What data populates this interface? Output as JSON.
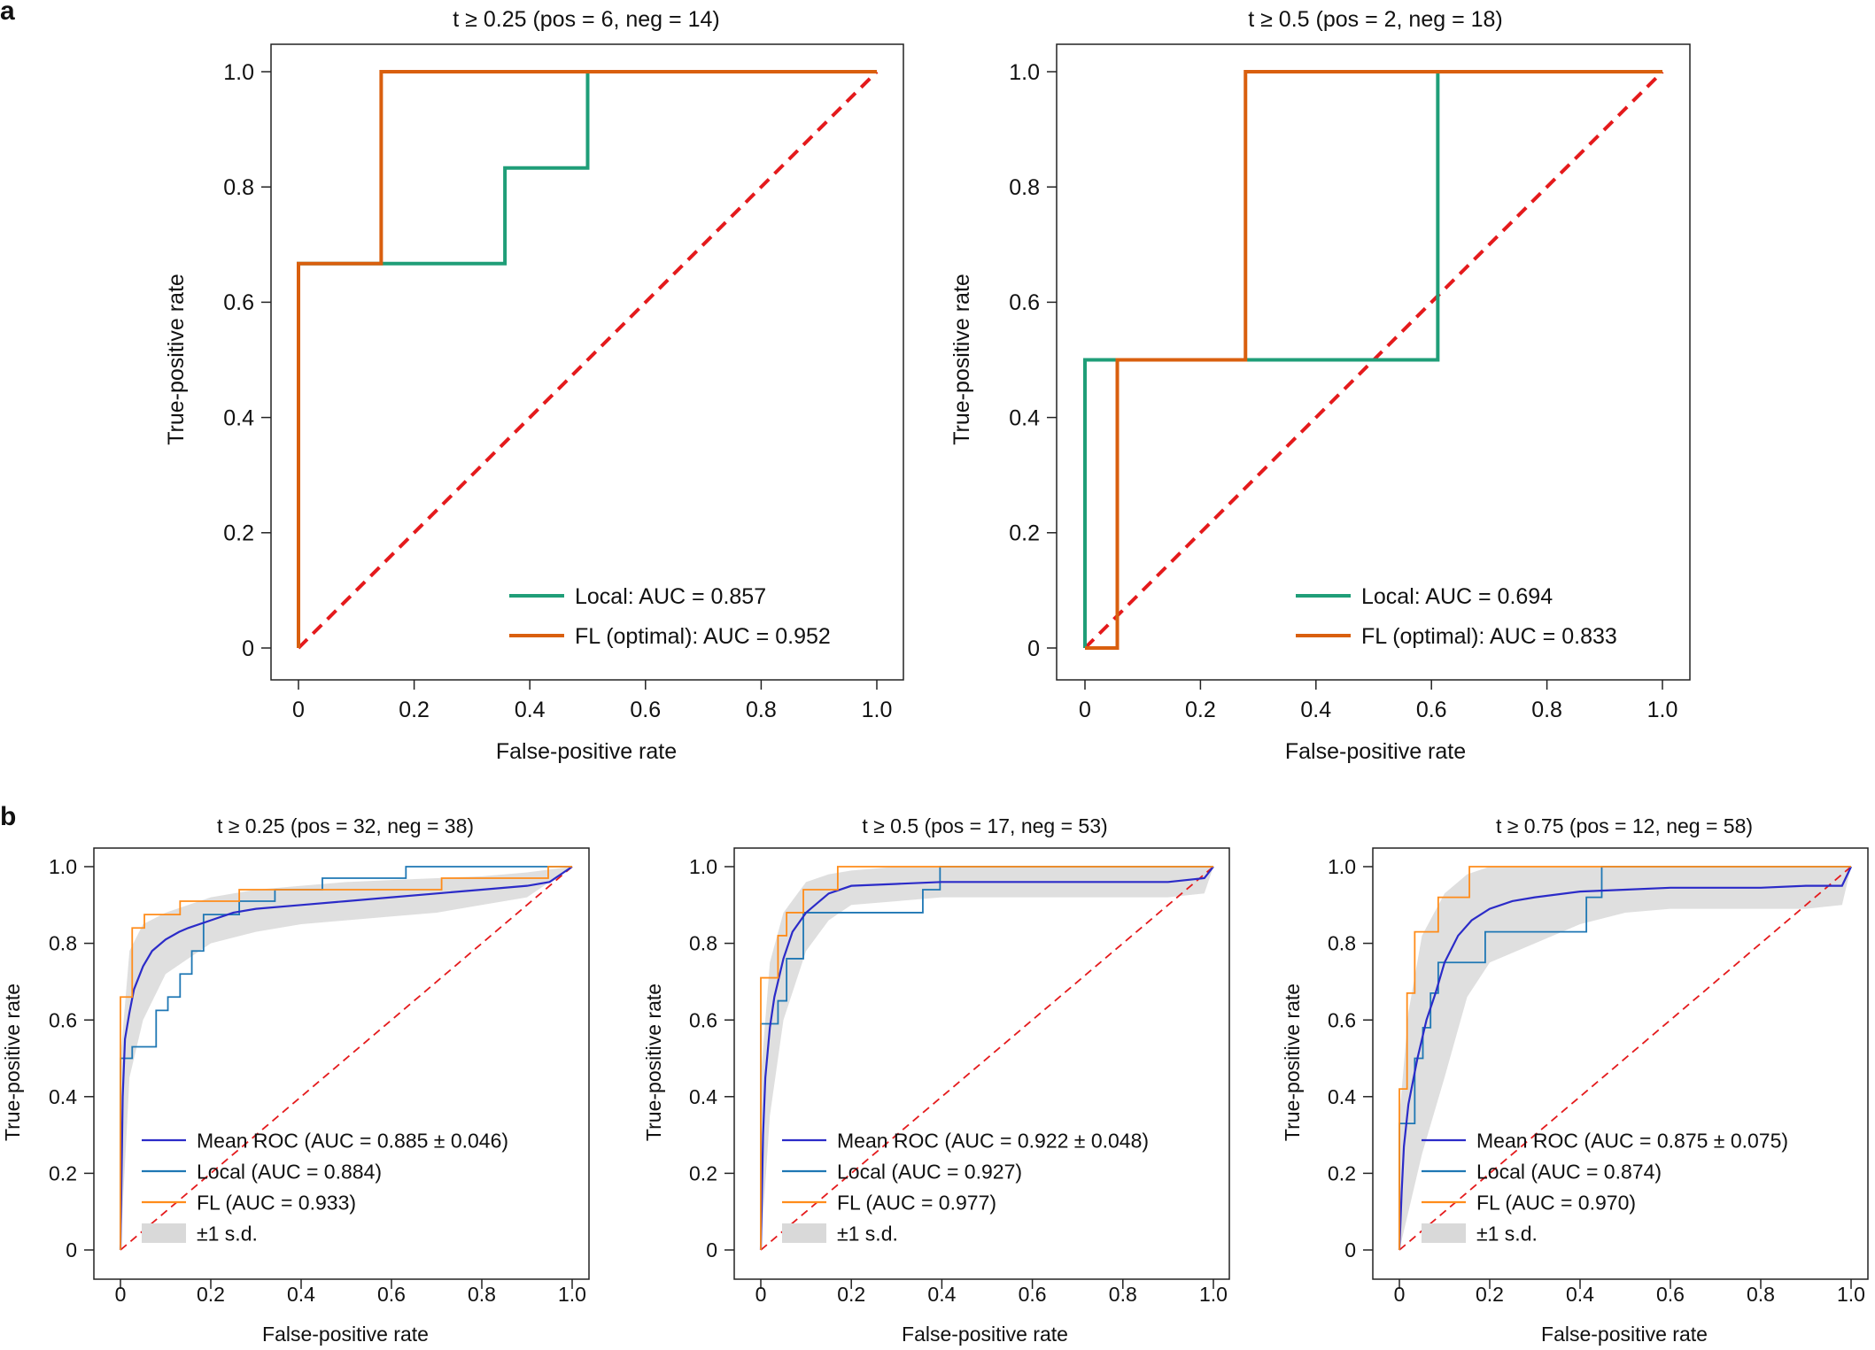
{
  "panel_labels": [
    "a",
    "b"
  ],
  "chart_data": [
    {
      "type": "line",
      "panel": "a",
      "title": "t ≥ 0.25 (pos = 6, neg = 14)",
      "xlabel": "False-positive rate",
      "ylabel": "True-positive rate",
      "xlim": [
        0,
        1
      ],
      "ylim": [
        0,
        1
      ],
      "xticks": [
        "0",
        "0.2",
        "0.4",
        "0.6",
        "0.8",
        "1.0"
      ],
      "yticks": [
        "0",
        "0.2",
        "0.4",
        "0.6",
        "0.8",
        "1.0"
      ],
      "legend_position": "bottom-right",
      "grid": false,
      "series": [
        {
          "name": "Local: AUC = 0.857",
          "color": "#1f9e78",
          "style": "step",
          "x": [
            0,
            0,
            0.143,
            0.357,
            0.357,
            0.5,
            0.5,
            1.0
          ],
          "y": [
            0,
            0.667,
            0.667,
            0.667,
            0.833,
            0.833,
            1.0,
            1.0
          ]
        },
        {
          "name": "FL (optimal): AUC = 0.952",
          "color": "#d95f0e",
          "style": "step",
          "x": [
            0,
            0,
            0.143,
            0.143,
            1.0
          ],
          "y": [
            0,
            0.667,
            0.667,
            1.0,
            1.0
          ]
        }
      ],
      "reference_line": {
        "x": [
          0,
          1
        ],
        "y": [
          0,
          1
        ],
        "color": "#e41a1c",
        "style": "dashed"
      }
    },
    {
      "type": "line",
      "panel": "a",
      "title": "t ≥ 0.5 (pos = 2, neg = 18)",
      "xlabel": "False-positive rate",
      "ylabel": "True-positive rate",
      "xlim": [
        0,
        1
      ],
      "ylim": [
        0,
        1
      ],
      "xticks": [
        "0",
        "0.2",
        "0.4",
        "0.6",
        "0.8",
        "1.0"
      ],
      "yticks": [
        "0",
        "0.2",
        "0.4",
        "0.6",
        "0.8",
        "1.0"
      ],
      "legend_position": "bottom-right",
      "grid": false,
      "series": [
        {
          "name": "Local: AUC = 0.694",
          "color": "#1f9e78",
          "style": "step",
          "x": [
            0,
            0,
            0.611,
            0.611,
            1.0
          ],
          "y": [
            0,
            0.5,
            0.5,
            1.0,
            1.0
          ]
        },
        {
          "name": "FL (optimal): AUC = 0.833",
          "color": "#d95f0e",
          "style": "step",
          "x": [
            0,
            0.056,
            0.056,
            0.278,
            0.278,
            1.0
          ],
          "y": [
            0,
            0,
            0.5,
            0.5,
            1.0,
            1.0
          ]
        }
      ],
      "reference_line": {
        "x": [
          0,
          1
        ],
        "y": [
          0,
          1
        ],
        "color": "#e41a1c",
        "style": "dashed"
      }
    },
    {
      "type": "line",
      "panel": "b",
      "title": "t ≥ 0.25 (pos = 32, neg = 38)",
      "xlabel": "False-positive rate",
      "ylabel": "True-positive rate",
      "xlim": [
        0,
        1
      ],
      "ylim": [
        0,
        1
      ],
      "xticks": [
        "0",
        "0.2",
        "0.4",
        "0.6",
        "0.8",
        "1.0"
      ],
      "yticks": [
        "0",
        "0.2",
        "0.4",
        "0.6",
        "0.8",
        "1.0"
      ],
      "legend_position": "bottom-left",
      "grid": false,
      "series": [
        {
          "name": "Mean ROC (AUC = 0.885 ± 0.046)",
          "color": "#2b2bc8",
          "style": "line",
          "x": [
            0,
            0.005,
            0.01,
            0.02,
            0.03,
            0.05,
            0.07,
            0.1,
            0.13,
            0.15,
            0.2,
            0.25,
            0.3,
            0.4,
            0.5,
            0.6,
            0.7,
            0.8,
            0.9,
            0.95,
            1.0
          ],
          "y": [
            0,
            0.4,
            0.55,
            0.62,
            0.68,
            0.74,
            0.78,
            0.81,
            0.83,
            0.84,
            0.86,
            0.88,
            0.89,
            0.9,
            0.91,
            0.92,
            0.93,
            0.94,
            0.95,
            0.96,
            1.0
          ]
        },
        {
          "name": "Local (AUC = 0.884)",
          "color": "#1f77b4",
          "style": "step",
          "x": [
            0,
            0,
            0.026,
            0.026,
            0.079,
            0.079,
            0.105,
            0.105,
            0.132,
            0.132,
            0.158,
            0.158,
            0.184,
            0.184,
            0.263,
            0.263,
            0.342,
            0.342,
            0.447,
            0.447,
            0.632,
            0.632,
            0.789,
            0.789,
            1.0
          ],
          "y": [
            0,
            0.5,
            0.5,
            0.53,
            0.53,
            0.625,
            0.625,
            0.66,
            0.66,
            0.72,
            0.72,
            0.78,
            0.78,
            0.875,
            0.875,
            0.91,
            0.91,
            0.94,
            0.94,
            0.97,
            0.97,
            1.0,
            1.0,
            1.0,
            1.0
          ]
        },
        {
          "name": "FL (AUC = 0.933)",
          "color": "#ff8c1a",
          "style": "step",
          "x": [
            0,
            0,
            0.026,
            0.026,
            0.053,
            0.053,
            0.132,
            0.132,
            0.263,
            0.263,
            0.5,
            0.5,
            0.711,
            0.711,
            0.947,
            0.947,
            1.0
          ],
          "y": [
            0,
            0.66,
            0.66,
            0.84,
            0.84,
            0.875,
            0.875,
            0.91,
            0.91,
            0.94,
            0.94,
            0.94,
            0.94,
            0.97,
            0.97,
            1.0,
            1.0
          ]
        }
      ],
      "band": {
        "name": "±1 s.d.",
        "color": "#d9d9d9",
        "x": [
          0,
          0.02,
          0.05,
          0.1,
          0.15,
          0.2,
          0.3,
          0.4,
          0.5,
          0.6,
          0.7,
          0.8,
          0.9,
          1.0
        ],
        "upper": [
          0.5,
          0.78,
          0.85,
          0.88,
          0.9,
          0.92,
          0.94,
          0.95,
          0.96,
          0.965,
          0.97,
          0.975,
          0.985,
          1.0
        ],
        "lower": [
          0,
          0.45,
          0.6,
          0.72,
          0.76,
          0.8,
          0.83,
          0.85,
          0.86,
          0.87,
          0.88,
          0.9,
          0.92,
          1.0
        ]
      },
      "reference_line": {
        "x": [
          0,
          1
        ],
        "y": [
          0,
          1
        ],
        "color": "#e41a1c",
        "style": "dashed"
      }
    },
    {
      "type": "line",
      "panel": "b",
      "title": "t ≥ 0.5 (pos = 17, neg = 53)",
      "xlabel": "False-positive rate",
      "ylabel": "True-positive rate",
      "xlim": [
        0,
        1
      ],
      "ylim": [
        0,
        1
      ],
      "xticks": [
        "0",
        "0.2",
        "0.4",
        "0.6",
        "0.8",
        "1.0"
      ],
      "yticks": [
        "0",
        "0.2",
        "0.4",
        "0.6",
        "0.8",
        "1.0"
      ],
      "legend_position": "bottom-left",
      "grid": false,
      "series": [
        {
          "name": "Mean ROC (AUC = 0.922 ± 0.048)",
          "color": "#2b2bc8",
          "style": "line",
          "x": [
            0,
            0.005,
            0.01,
            0.02,
            0.03,
            0.05,
            0.07,
            0.1,
            0.13,
            0.15,
            0.2,
            0.3,
            0.4,
            0.5,
            0.6,
            0.7,
            0.8,
            0.9,
            0.98,
            1.0
          ],
          "y": [
            0,
            0.3,
            0.45,
            0.58,
            0.66,
            0.76,
            0.83,
            0.88,
            0.91,
            0.93,
            0.95,
            0.955,
            0.96,
            0.96,
            0.96,
            0.96,
            0.96,
            0.96,
            0.97,
            1.0
          ]
        },
        {
          "name": "Local (AUC = 0.927)",
          "color": "#1f77b4",
          "style": "step",
          "x": [
            0,
            0,
            0.038,
            0.038,
            0.057,
            0.057,
            0.094,
            0.094,
            0.358,
            0.358,
            0.396,
            0.396,
            1.0
          ],
          "y": [
            0,
            0.59,
            0.59,
            0.65,
            0.65,
            0.76,
            0.76,
            0.88,
            0.88,
            0.94,
            0.94,
            1.0,
            1.0
          ]
        },
        {
          "name": "FL (AUC = 0.977)",
          "color": "#ff8c1a",
          "style": "step",
          "x": [
            0,
            0,
            0.038,
            0.038,
            0.057,
            0.057,
            0.094,
            0.094,
            0.17,
            0.17,
            1.0
          ],
          "y": [
            0,
            0.71,
            0.71,
            0.82,
            0.82,
            0.88,
            0.88,
            0.94,
            0.94,
            1.0,
            1.0
          ]
        }
      ],
      "band": {
        "name": "±1 s.d.",
        "color": "#d9d9d9",
        "x": [
          0,
          0.02,
          0.05,
          0.1,
          0.15,
          0.2,
          0.3,
          0.4,
          0.5,
          0.6,
          0.7,
          0.8,
          0.9,
          0.98,
          1.0
        ],
        "upper": [
          0.45,
          0.75,
          0.88,
          0.96,
          0.98,
          0.99,
          1.0,
          1.0,
          1.0,
          1.0,
          1.0,
          1.0,
          1.0,
          1.0,
          1.0
        ],
        "lower": [
          0,
          0.35,
          0.6,
          0.78,
          0.86,
          0.9,
          0.91,
          0.92,
          0.92,
          0.92,
          0.92,
          0.92,
          0.92,
          0.93,
          1.0
        ]
      },
      "reference_line": {
        "x": [
          0,
          1
        ],
        "y": [
          0,
          1
        ],
        "color": "#e41a1c",
        "style": "dashed"
      }
    },
    {
      "type": "line",
      "panel": "b",
      "title": "t ≥ 0.75 (pos = 12, neg = 58)",
      "xlabel": "False-positive rate",
      "ylabel": "True-positive rate",
      "xlim": [
        0,
        1
      ],
      "ylim": [
        0,
        1
      ],
      "xticks": [
        "0",
        "0.2",
        "0.4",
        "0.6",
        "0.8",
        "1.0"
      ],
      "yticks": [
        "0",
        "0.2",
        "0.4",
        "0.6",
        "0.8",
        "1.0"
      ],
      "legend_position": "bottom-left",
      "grid": false,
      "series": [
        {
          "name": "Mean ROC (AUC = 0.875 ± 0.075)",
          "color": "#2b2bc8",
          "style": "line",
          "x": [
            0,
            0.005,
            0.01,
            0.02,
            0.04,
            0.06,
            0.08,
            0.1,
            0.13,
            0.16,
            0.2,
            0.25,
            0.3,
            0.4,
            0.5,
            0.6,
            0.7,
            0.8,
            0.9,
            0.98,
            1.0
          ],
          "y": [
            0,
            0.15,
            0.27,
            0.38,
            0.5,
            0.6,
            0.67,
            0.75,
            0.82,
            0.86,
            0.89,
            0.91,
            0.92,
            0.935,
            0.94,
            0.945,
            0.945,
            0.945,
            0.95,
            0.95,
            1.0
          ]
        },
        {
          "name": "Local (AUC = 0.874)",
          "color": "#1f77b4",
          "style": "step",
          "x": [
            0,
            0,
            0.034,
            0.034,
            0.052,
            0.052,
            0.069,
            0.069,
            0.086,
            0.086,
            0.19,
            0.19,
            0.414,
            0.414,
            0.448,
            0.448,
            1.0
          ],
          "y": [
            0,
            0.33,
            0.33,
            0.5,
            0.5,
            0.58,
            0.58,
            0.67,
            0.67,
            0.75,
            0.75,
            0.83,
            0.83,
            0.92,
            0.92,
            1.0,
            1.0
          ]
        },
        {
          "name": "FL (AUC = 0.970)",
          "color": "#ff8c1a",
          "style": "step",
          "x": [
            0,
            0,
            0.017,
            0.017,
            0.034,
            0.034,
            0.052,
            0.052,
            0.086,
            0.086,
            0.121,
            0.121,
            0.155,
            0.155,
            1.0
          ],
          "y": [
            0,
            0.42,
            0.42,
            0.67,
            0.67,
            0.83,
            0.83,
            0.83,
            0.83,
            0.92,
            0.92,
            0.92,
            0.92,
            1.0,
            1.0
          ]
        }
      ],
      "band": {
        "name": "±1 s.d.",
        "color": "#d9d9d9",
        "x": [
          0,
          0.02,
          0.05,
          0.1,
          0.15,
          0.2,
          0.3,
          0.4,
          0.5,
          0.6,
          0.7,
          0.8,
          0.9,
          0.98,
          1.0
        ],
        "upper": [
          0.35,
          0.62,
          0.82,
          0.93,
          0.98,
          1.0,
          1.0,
          1.0,
          1.0,
          1.0,
          1.0,
          1.0,
          1.0,
          1.0,
          1.0
        ],
        "lower": [
          0,
          0.1,
          0.25,
          0.45,
          0.66,
          0.75,
          0.8,
          0.85,
          0.88,
          0.89,
          0.89,
          0.89,
          0.89,
          0.9,
          1.0
        ]
      },
      "reference_line": {
        "x": [
          0,
          1
        ],
        "y": [
          0,
          1
        ],
        "color": "#e41a1c",
        "style": "dashed"
      }
    }
  ]
}
